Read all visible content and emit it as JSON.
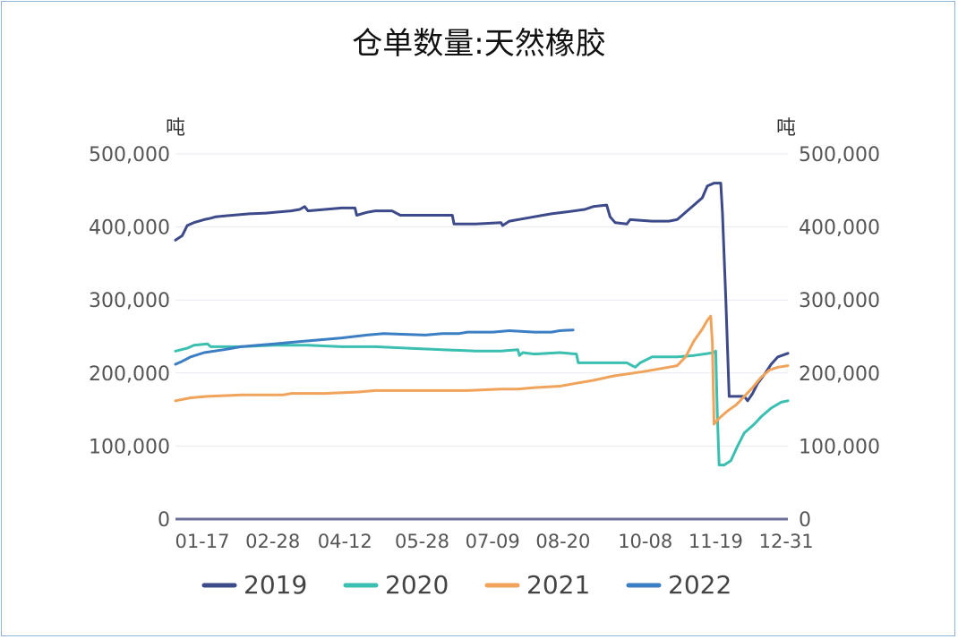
{
  "chart_data": {
    "type": "line",
    "title": "仓单数量:天然橡胶",
    "y_unit_left": "吨",
    "y_unit_right": "吨",
    "ylim": [
      0,
      500000
    ],
    "y_ticks": [
      0,
      100000,
      200000,
      300000,
      400000,
      500000
    ],
    "y_tick_labels": [
      "0",
      "100,000",
      "200,000",
      "300,000",
      "400,000",
      "500,000"
    ],
    "x_tick_labels": [
      "01-17",
      "02-28",
      "04-12",
      "05-28",
      "07-09",
      "08-20",
      "10-08",
      "11-19",
      "12-31"
    ],
    "x_domain": [
      1,
      366
    ],
    "x_tick_days": [
      17,
      59,
      102,
      148,
      190,
      232,
      281,
      323,
      365
    ],
    "grid": true,
    "legend_position": "bottom",
    "series": [
      {
        "name": "2019",
        "color": "#3d4a8a",
        "points": [
          [
            1,
            382000
          ],
          [
            5,
            388000
          ],
          [
            8,
            402000
          ],
          [
            12,
            406000
          ],
          [
            18,
            410000
          ],
          [
            22,
            412000
          ],
          [
            25,
            414000
          ],
          [
            35,
            416000
          ],
          [
            45,
            418000
          ],
          [
            55,
            419000
          ],
          [
            60,
            420000
          ],
          [
            70,
            422000
          ],
          [
            75,
            424000
          ],
          [
            78,
            428000
          ],
          [
            80,
            422000
          ],
          [
            90,
            424000
          ],
          [
            100,
            426000
          ],
          [
            108,
            426000
          ],
          [
            109,
            416000
          ],
          [
            115,
            420000
          ],
          [
            120,
            422000
          ],
          [
            130,
            422000
          ],
          [
            135,
            416000
          ],
          [
            150,
            416000
          ],
          [
            166,
            416000
          ],
          [
            167,
            404000
          ],
          [
            180,
            404000
          ],
          [
            195,
            406000
          ],
          [
            196,
            402000
          ],
          [
            200,
            408000
          ],
          [
            210,
            412000
          ],
          [
            220,
            416000
          ],
          [
            225,
            418000
          ],
          [
            232,
            420000
          ],
          [
            245,
            424000
          ],
          [
            250,
            428000
          ],
          [
            258,
            430000
          ],
          [
            260,
            414000
          ],
          [
            263,
            406000
          ],
          [
            270,
            404000
          ],
          [
            272,
            410000
          ],
          [
            285,
            408000
          ],
          [
            295,
            408000
          ],
          [
            300,
            410000
          ],
          [
            305,
            420000
          ],
          [
            310,
            430000
          ],
          [
            315,
            440000
          ],
          [
            318,
            456000
          ],
          [
            322,
            460000
          ],
          [
            326,
            460000
          ],
          [
            327,
            420000
          ],
          [
            329,
            300000
          ],
          [
            331,
            168000
          ],
          [
            340,
            168000
          ],
          [
            342,
            162000
          ],
          [
            345,
            172000
          ],
          [
            348,
            186000
          ],
          [
            352,
            198000
          ],
          [
            356,
            212000
          ],
          [
            360,
            222000
          ],
          [
            366,
            227000
          ]
        ]
      },
      {
        "name": "2020",
        "color": "#3bbfb1",
        "points": [
          [
            1,
            230000
          ],
          [
            8,
            234000
          ],
          [
            12,
            238000
          ],
          [
            20,
            240000
          ],
          [
            22,
            236000
          ],
          [
            40,
            236000
          ],
          [
            60,
            238000
          ],
          [
            80,
            238000
          ],
          [
            100,
            236000
          ],
          [
            120,
            236000
          ],
          [
            140,
            234000
          ],
          [
            160,
            232000
          ],
          [
            180,
            230000
          ],
          [
            195,
            230000
          ],
          [
            205,
            232000
          ],
          [
            206,
            224000
          ],
          [
            208,
            228000
          ],
          [
            215,
            226000
          ],
          [
            230,
            228000
          ],
          [
            240,
            226000
          ],
          [
            241,
            214000
          ],
          [
            255,
            214000
          ],
          [
            270,
            214000
          ],
          [
            275,
            208000
          ],
          [
            278,
            214000
          ],
          [
            285,
            222000
          ],
          [
            300,
            222000
          ],
          [
            310,
            224000
          ],
          [
            322,
            228000
          ],
          [
            323,
            230000
          ],
          [
            324,
            140000
          ],
          [
            325,
            74000
          ],
          [
            328,
            74000
          ],
          [
            332,
            80000
          ],
          [
            336,
            100000
          ],
          [
            340,
            118000
          ],
          [
            346,
            130000
          ],
          [
            350,
            140000
          ],
          [
            356,
            152000
          ],
          [
            362,
            160000
          ],
          [
            366,
            162000
          ]
        ]
      },
      {
        "name": "2021",
        "color": "#f0a35a",
        "points": [
          [
            1,
            162000
          ],
          [
            10,
            166000
          ],
          [
            20,
            168000
          ],
          [
            40,
            170000
          ],
          [
            65,
            170000
          ],
          [
            70,
            172000
          ],
          [
            90,
            172000
          ],
          [
            110,
            174000
          ],
          [
            120,
            176000
          ],
          [
            150,
            176000
          ],
          [
            175,
            176000
          ],
          [
            195,
            178000
          ],
          [
            205,
            178000
          ],
          [
            215,
            180000
          ],
          [
            230,
            182000
          ],
          [
            240,
            186000
          ],
          [
            250,
            190000
          ],
          [
            262,
            196000
          ],
          [
            280,
            202000
          ],
          [
            295,
            208000
          ],
          [
            300,
            210000
          ],
          [
            305,
            222000
          ],
          [
            310,
            244000
          ],
          [
            315,
            260000
          ],
          [
            318,
            272000
          ],
          [
            320,
            278000
          ],
          [
            321,
            240000
          ],
          [
            322,
            130000
          ],
          [
            325,
            138000
          ],
          [
            330,
            148000
          ],
          [
            335,
            156000
          ],
          [
            340,
            168000
          ],
          [
            345,
            180000
          ],
          [
            350,
            194000
          ],
          [
            355,
            204000
          ],
          [
            360,
            208000
          ],
          [
            366,
            210000
          ]
        ]
      },
      {
        "name": "2022",
        "color": "#3c7ec4",
        "points": [
          [
            1,
            212000
          ],
          [
            5,
            216000
          ],
          [
            10,
            222000
          ],
          [
            18,
            228000
          ],
          [
            30,
            232000
          ],
          [
            40,
            236000
          ],
          [
            50,
            238000
          ],
          [
            60,
            240000
          ],
          [
            70,
            242000
          ],
          [
            80,
            244000
          ],
          [
            90,
            246000
          ],
          [
            100,
            248000
          ],
          [
            115,
            252000
          ],
          [
            125,
            254000
          ],
          [
            150,
            252000
          ],
          [
            160,
            254000
          ],
          [
            170,
            254000
          ],
          [
            175,
            256000
          ],
          [
            190,
            256000
          ],
          [
            200,
            258000
          ],
          [
            215,
            256000
          ],
          [
            225,
            256000
          ],
          [
            230,
            258000
          ],
          [
            238,
            259000
          ]
        ]
      }
    ]
  }
}
